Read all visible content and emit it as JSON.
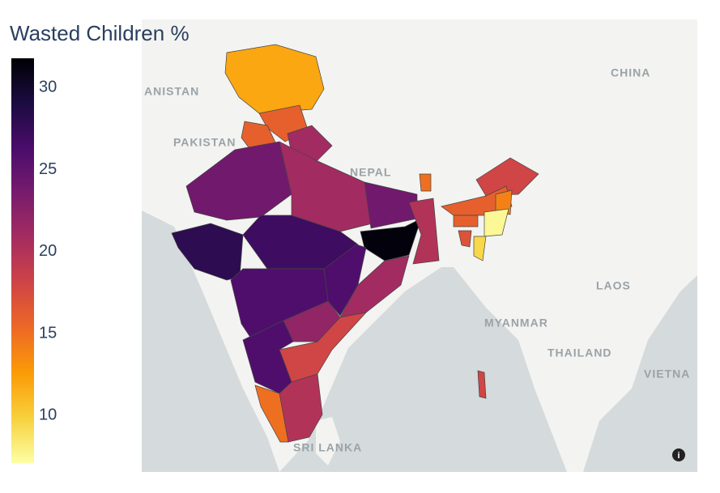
{
  "chart_data": {
    "type": "choropleth",
    "title": "Wasted Children %",
    "values": [
      12,
      16,
      16,
      21,
      24,
      21,
      28,
      27,
      24,
      31.5,
      20,
      26,
      21,
      26,
      22,
      18,
      26,
      20,
      15,
      15,
      18,
      16,
      16,
      14,
      7.5,
      9.5,
      17,
      18
    ],
    "colorscale": [
      "#fcffa4",
      "#f7d13d",
      "#fb9b06",
      "#ed6925",
      "#cf4446",
      "#a52c60",
      "#781c6d",
      "#4a0c6b",
      "#1b0c41",
      "#000004"
    ],
    "clim": [
      7.1,
      31.8
    ],
    "cticks": [
      10,
      15,
      20,
      25,
      30
    ],
    "map_labels": [
      "ANISTAN",
      "PAKISTAN",
      "NEPAL",
      "CHINA",
      "LAOS",
      "MYANMAR",
      "THAILAND",
      "VIETNA",
      "SRI LANKA"
    ]
  }
}
